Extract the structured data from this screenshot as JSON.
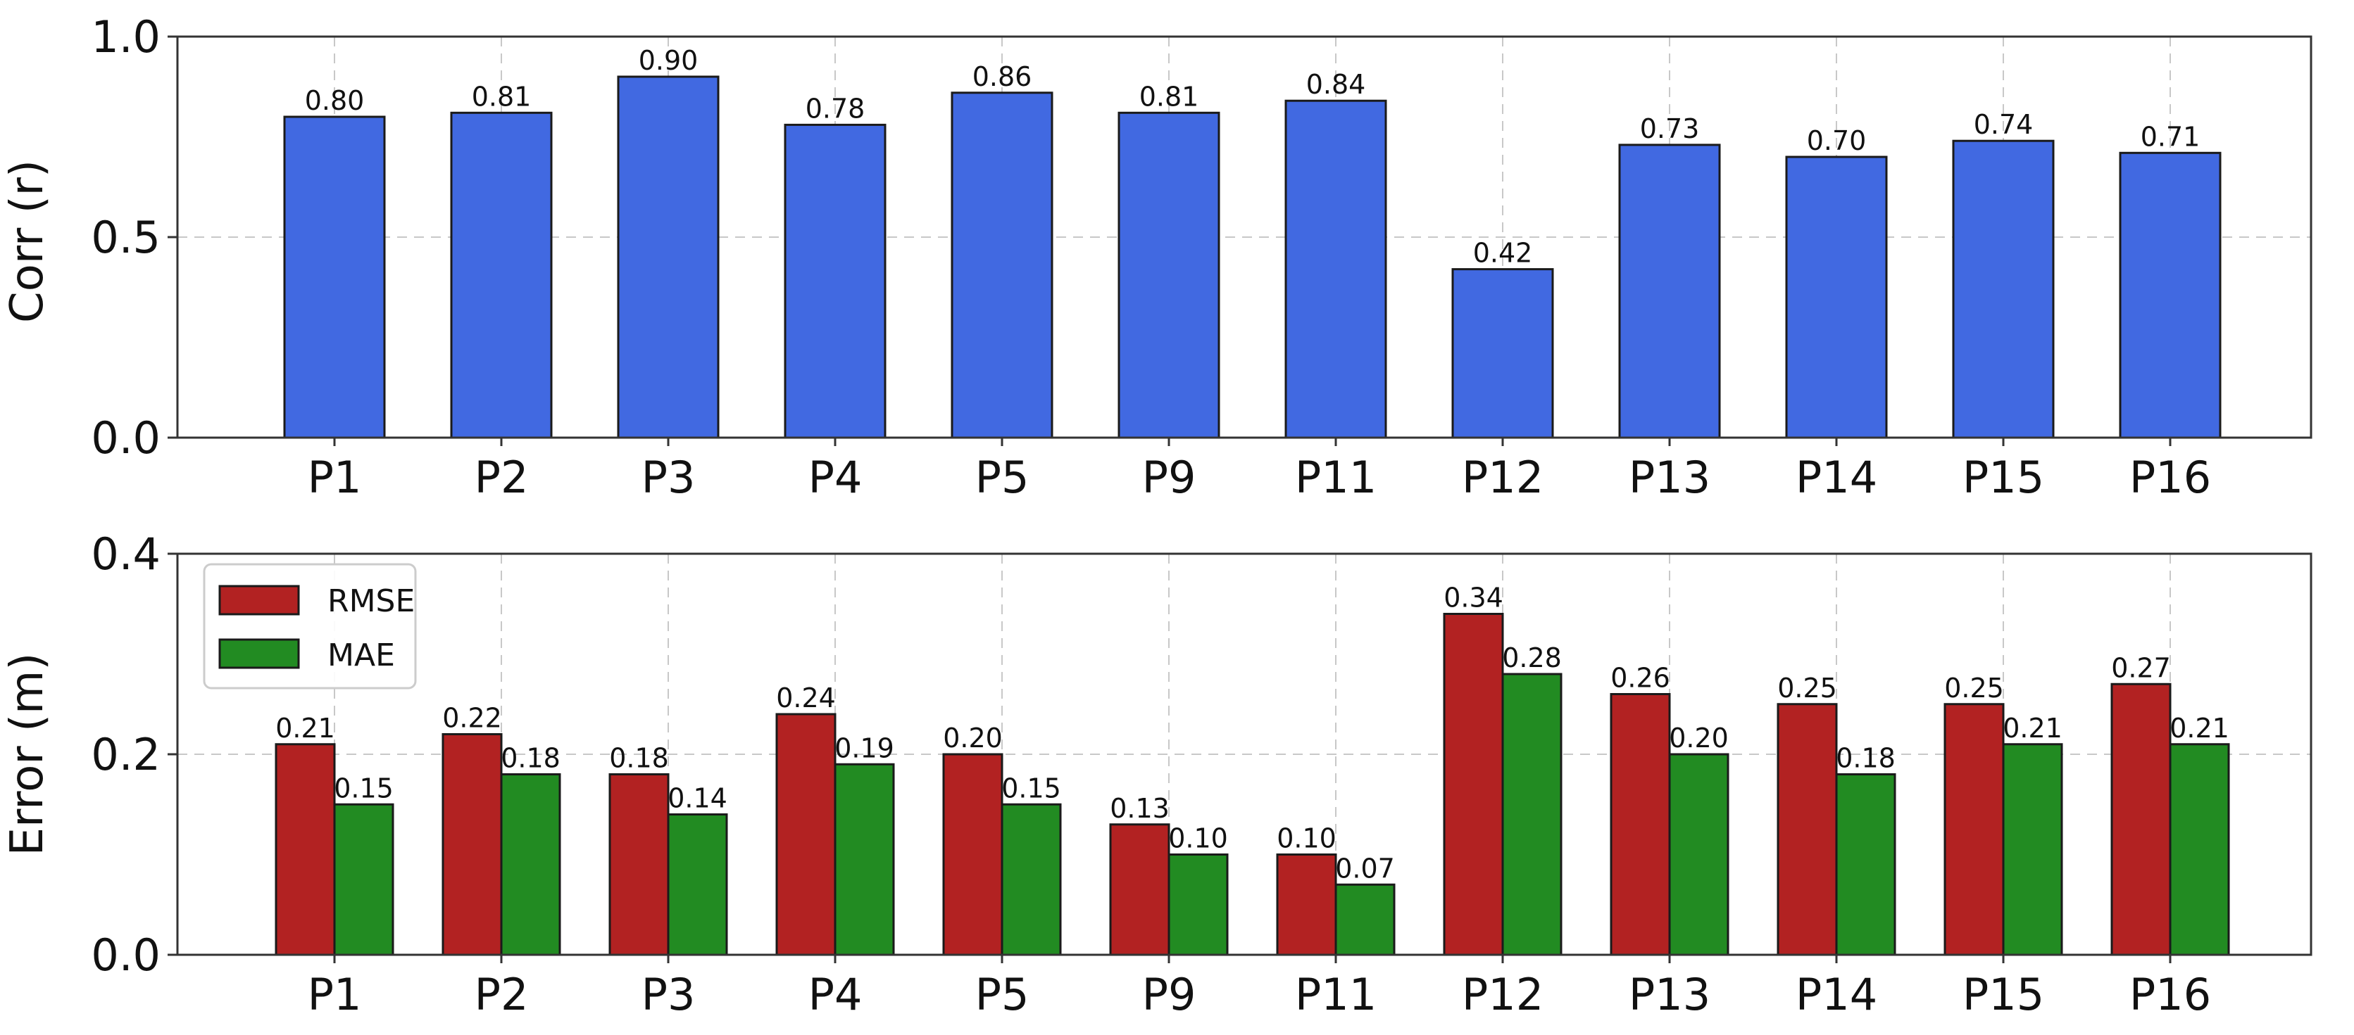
{
  "colors": {
    "corr_bar": "#4169e1",
    "rmse_bar": "#b22222",
    "mae_bar": "#228b22"
  },
  "chart_data": [
    {
      "type": "bar",
      "categories": [
        "P1",
        "P2",
        "P3",
        "P4",
        "P5",
        "P9",
        "P11",
        "P12",
        "P13",
        "P14",
        "P15",
        "P16"
      ],
      "series": [
        {
          "name": "Corr (r)",
          "values": [
            0.8,
            0.81,
            0.9,
            0.78,
            0.86,
            0.81,
            0.84,
            0.42,
            0.73,
            0.7,
            0.74,
            0.71
          ],
          "labels": [
            "0.80",
            "0.81",
            "0.90",
            "0.78",
            "0.86",
            "0.81",
            "0.84",
            "0.42",
            "0.73",
            "0.70",
            "0.74",
            "0.71"
          ]
        }
      ],
      "title": "",
      "xlabel": "",
      "ylabel": "Corr (r)",
      "ylim": [
        0,
        1.0
      ],
      "yticks": [
        "0.0",
        "0.5",
        "1.0"
      ],
      "ytick_values": [
        0.0,
        0.5,
        1.0
      ],
      "grid": true,
      "legend": null
    },
    {
      "type": "bar",
      "categories": [
        "P1",
        "P2",
        "P3",
        "P4",
        "P5",
        "P9",
        "P11",
        "P12",
        "P13",
        "P14",
        "P15",
        "P16"
      ],
      "series": [
        {
          "name": "RMSE",
          "values": [
            0.21,
            0.22,
            0.18,
            0.24,
            0.2,
            0.13,
            0.1,
            0.34,
            0.26,
            0.25,
            0.25,
            0.27
          ],
          "labels": [
            "0.21",
            "0.22",
            "0.18",
            "0.24",
            "0.20",
            "0.13",
            "0.10",
            "0.34",
            "0.26",
            "0.25",
            "0.25",
            "0.27"
          ]
        },
        {
          "name": "MAE",
          "values": [
            0.15,
            0.18,
            0.14,
            0.19,
            0.15,
            0.1,
            0.07,
            0.28,
            0.2,
            0.18,
            0.21,
            0.21
          ],
          "labels": [
            "0.15",
            "0.18",
            "0.14",
            "0.19",
            "0.15",
            "0.10",
            "0.07",
            "0.28",
            "0.20",
            "0.18",
            "0.21",
            "0.21"
          ]
        }
      ],
      "title": "",
      "xlabel": "",
      "ylabel": "Error (m)",
      "ylim": [
        0,
        0.4
      ],
      "yticks": [
        "0.0",
        "0.2",
        "0.4"
      ],
      "ytick_values": [
        0.0,
        0.2,
        0.4
      ],
      "grid": true,
      "legend": "top-left"
    }
  ]
}
